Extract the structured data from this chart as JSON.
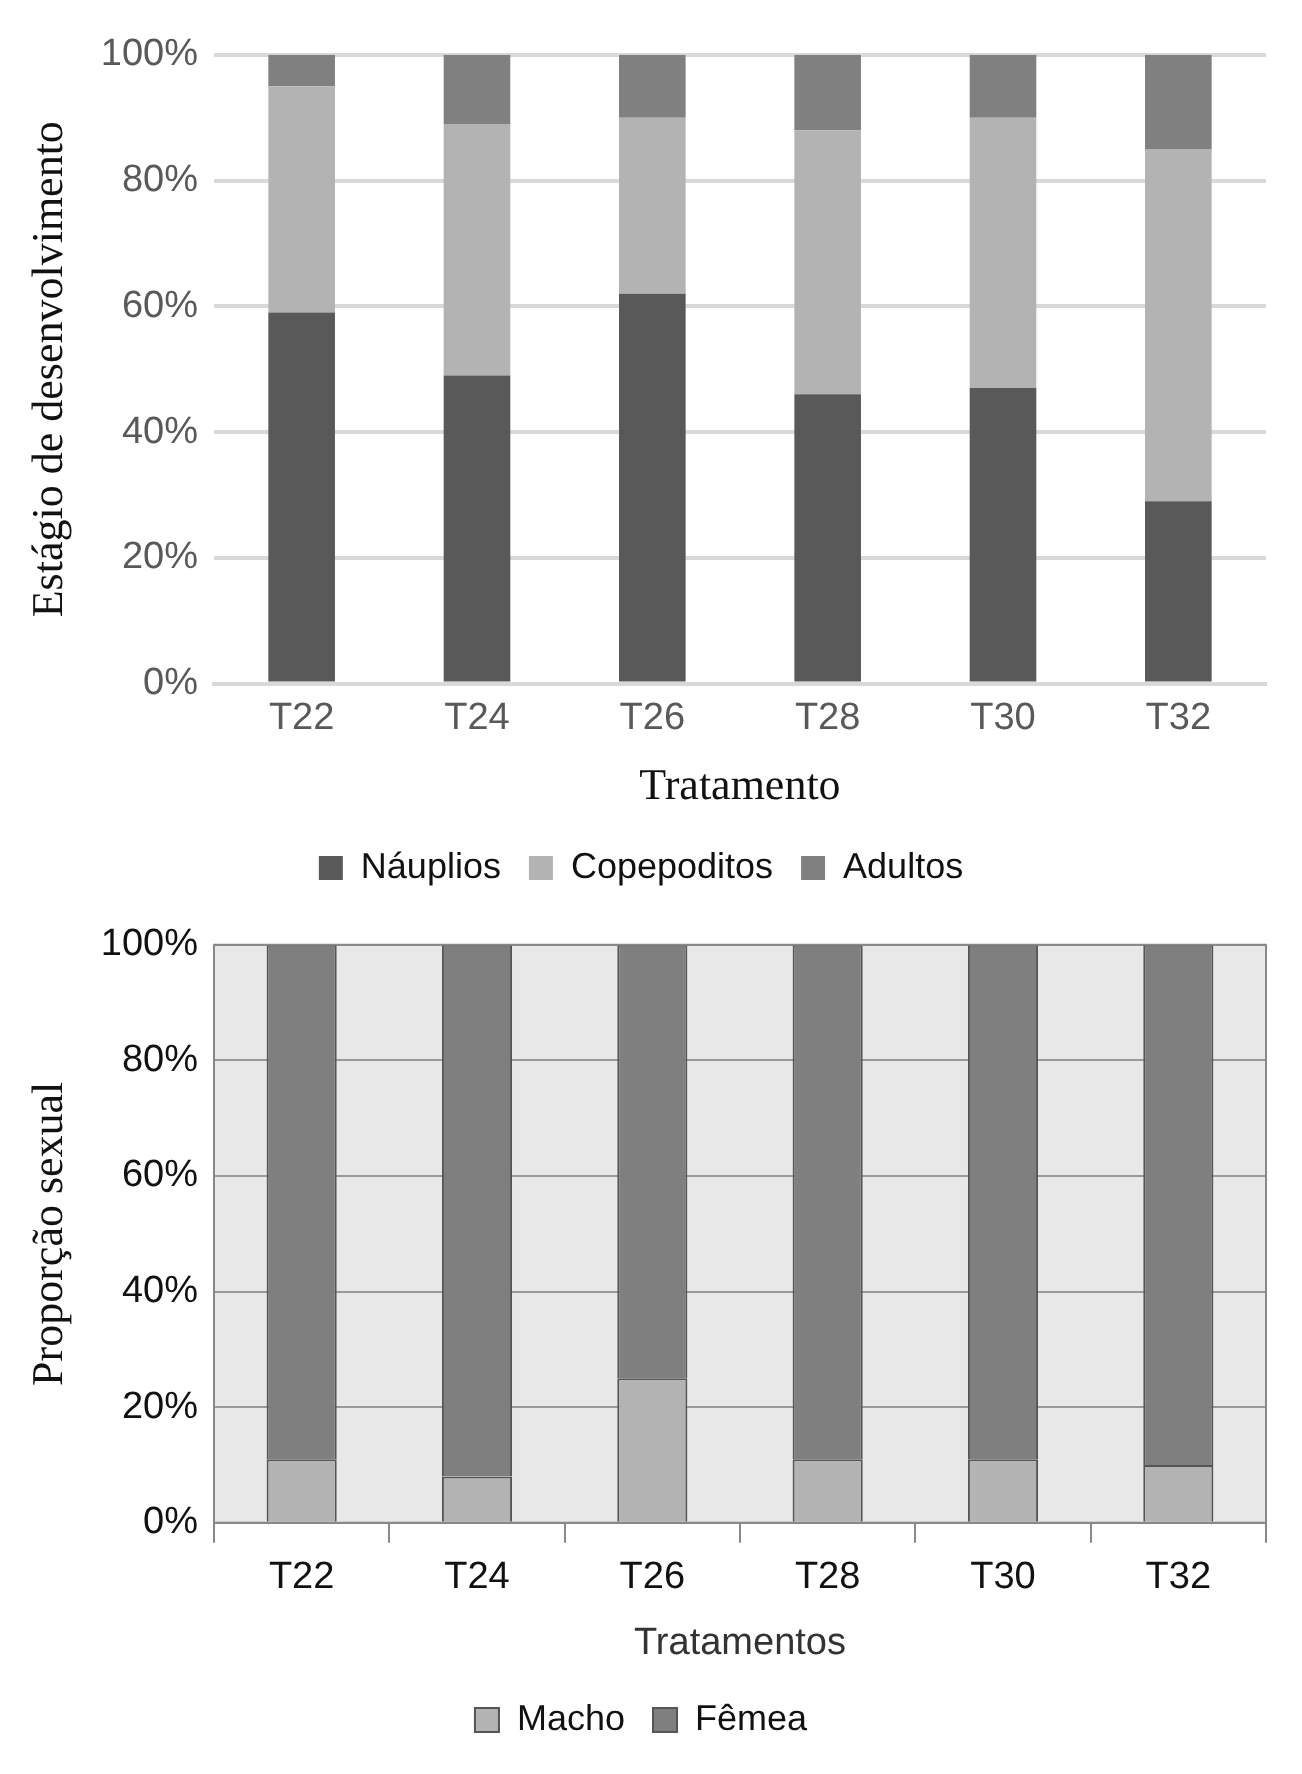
{
  "chart_data": [
    {
      "type": "bar",
      "stacked": true,
      "xlabel": "Tratamento",
      "ylabel": "Estágio de desenvolvimento",
      "categories": [
        "T22",
        "T24",
        "T26",
        "T28",
        "T30",
        "T32"
      ],
      "series": [
        {
          "name": "Náuplios",
          "color": "#595959",
          "values": [
            59,
            49,
            62,
            46,
            47,
            29
          ]
        },
        {
          "name": "Copepoditos",
          "color": "#b3b3b3",
          "values": [
            36,
            40,
            28,
            42,
            43,
            56
          ]
        },
        {
          "name": "Adultos",
          "color": "#808080",
          "values": [
            5,
            11,
            10,
            12,
            10,
            15
          ]
        }
      ],
      "ylim": [
        0,
        100
      ],
      "yticks": [
        {
          "value": 0,
          "label": "0%"
        },
        {
          "value": 20,
          "label": "20%"
        },
        {
          "value": 40,
          "label": "40%"
        },
        {
          "value": 60,
          "label": "60%"
        },
        {
          "value": 80,
          "label": "80%"
        },
        {
          "value": 100,
          "label": "100%"
        }
      ],
      "grid": "y",
      "legend": "bottom"
    },
    {
      "type": "bar",
      "stacked": true,
      "xlabel": "Tratamentos",
      "ylabel": "Proporção sexual",
      "categories": [
        "T22",
        "T24",
        "T26",
        "T28",
        "T30",
        "T32"
      ],
      "series": [
        {
          "name": "Macho",
          "color": "#b3b3b3",
          "values": [
            11,
            8,
            25,
            11,
            11,
            10
          ]
        },
        {
          "name": "Fêmea",
          "color": "#7f7f7f",
          "values": [
            89,
            92,
            75,
            89,
            89,
            90
          ]
        }
      ],
      "ylim": [
        0,
        100
      ],
      "yticks": [
        {
          "value": 0,
          "label": "0%"
        },
        {
          "value": 20,
          "label": "20%"
        },
        {
          "value": 40,
          "label": "40%"
        },
        {
          "value": 60,
          "label": "60%"
        },
        {
          "value": 80,
          "label": "80%"
        },
        {
          "value": 100,
          "label": "100%"
        }
      ],
      "grid": "y",
      "legend": "bottom"
    }
  ]
}
